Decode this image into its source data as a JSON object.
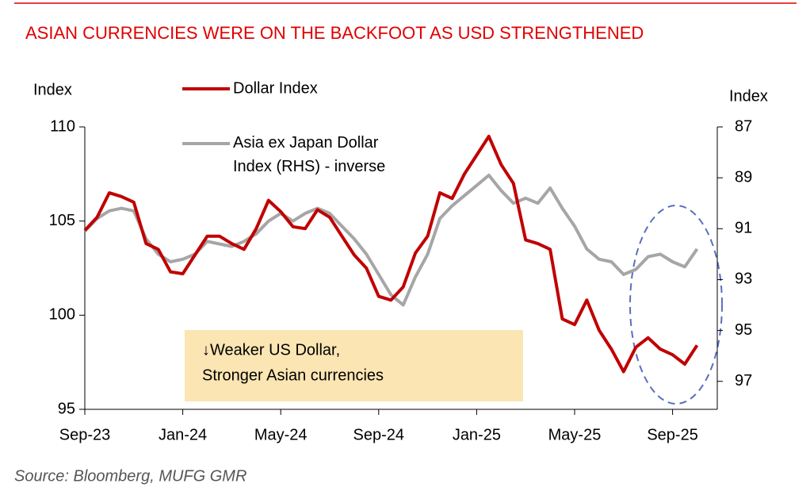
{
  "chart_data": {
    "type": "line",
    "title": "ASIAN CURRENCIES WERE ON THE BACKFOOT AS USD STRENGTHENED",
    "y_label": "Index",
    "y2_label": "Index",
    "categories": [
      "Sep-23",
      null,
      null,
      null,
      null,
      null,
      null,
      null,
      "Jan-24",
      null,
      null,
      null,
      null,
      null,
      null,
      null,
      "May-24",
      null,
      null,
      null,
      null,
      null,
      null,
      null,
      "Sep-24",
      null,
      null,
      null,
      null,
      null,
      null,
      null,
      "Jan-25",
      null,
      null,
      null,
      null,
      null,
      null,
      null,
      "May-25",
      null,
      null,
      null,
      null,
      null,
      null,
      null,
      "Sep-25",
      null,
      null
    ],
    "series": [
      {
        "name": "Dollar Index",
        "color": "#c00000",
        "values": [
          104.5,
          105.2,
          106.5,
          106.3,
          106.0,
          103.8,
          103.5,
          102.3,
          102.2,
          103.2,
          104.2,
          104.2,
          103.8,
          103.5,
          104.6,
          106.1,
          105.5,
          104.7,
          104.6,
          105.6,
          105.2,
          104.2,
          103.2,
          102.5,
          101.0,
          100.8,
          101.5,
          103.3,
          104.2,
          106.5,
          106.2,
          107.5,
          108.5,
          109.5,
          108.0,
          107.0,
          104.0,
          103.8,
          103.5,
          99.8,
          99.5,
          100.8,
          99.2,
          98.2,
          97.0,
          98.3,
          98.8,
          98.2,
          97.9,
          97.4,
          98.4
        ]
      },
      {
        "name": "Asia ex Japan Dollar Index (RHS) - inverse",
        "color": "#a6a6a6",
        "axis": "y2",
        "values": [
          91.1,
          90.6,
          90.3,
          90.2,
          90.3,
          91.4,
          92.0,
          92.3,
          92.2,
          92.0,
          91.5,
          91.6,
          91.7,
          91.5,
          91.2,
          90.7,
          90.4,
          90.7,
          90.4,
          90.2,
          90.4,
          90.9,
          91.4,
          92.0,
          92.8,
          93.6,
          94.0,
          92.9,
          92.0,
          90.6,
          90.1,
          89.7,
          89.3,
          88.9,
          89.5,
          90.0,
          89.8,
          90.0,
          89.4,
          90.2,
          90.9,
          91.8,
          92.2,
          92.3,
          92.8,
          92.6,
          92.1,
          92.0,
          92.3,
          92.5,
          91.8
        ]
      }
    ],
    "ylim": [
      95,
      110
    ],
    "yticks": [
      95,
      100,
      105,
      110
    ],
    "y2lim": [
      87,
      98.1
    ],
    "y2ticks": [
      87,
      89,
      91,
      93,
      95,
      97
    ],
    "y2_inverted": true,
    "annotation": [
      "↓Weaker US Dollar,",
      "Stronger Asian currencies"
    ],
    "source": "Source: Bloomberg, MUFG GMR"
  }
}
